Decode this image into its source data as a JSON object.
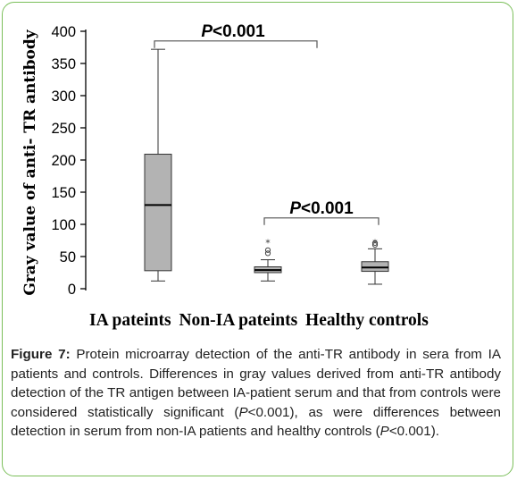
{
  "chart_data": {
    "type": "box",
    "ylabel": "Gray value of anti- TR antibody",
    "ylim": [
      0,
      400
    ],
    "yticks": [
      0,
      50,
      100,
      150,
      200,
      250,
      300,
      350,
      400
    ],
    "categories": [
      "IA pateints",
      "Non-IA pateints",
      "Healthy controls"
    ],
    "boxes": [
      {
        "category": "IA pateints",
        "whisker_low": 12,
        "q1": 28,
        "median": 130,
        "q3": 209,
        "whisker_high": 372,
        "outliers": []
      },
      {
        "category": "Non-IA pateints",
        "whisker_low": 12,
        "q1": 25,
        "median": 29,
        "q3": 34,
        "whisker_high": 45,
        "outliers": [
          55,
          60,
          74
        ]
      },
      {
        "category": "Healthy controls",
        "whisker_low": 7,
        "q1": 27,
        "median": 33,
        "q3": 42,
        "whisker_high": 62,
        "outliers": [
          68,
          71,
          74
        ]
      }
    ],
    "annotations": [
      {
        "text": "P<0.001",
        "from": "IA pateints",
        "to": "Non-IA pateints",
        "level": 385
      },
      {
        "text": "P<0.001",
        "from": "Non-IA pateints",
        "to": "Healthy controls",
        "level": 110
      }
    ],
    "grid": false
  },
  "caption": {
    "label": "Figure 7:",
    "text_1": " Protein microarray detection of the anti-TR antibody in sera from IA patients and controls. Differences in gray values derived from anti-TR antibody detection of the TR antigen between IA-patient serum and that from controls were considered statistically significant (",
    "p1": "P",
    "text_2": "<0.001), as were differences between detection in serum from non-IA patients and healthy controls (",
    "p2": "P",
    "text_3": "<0.001)."
  },
  "colors": {
    "frame": "#7bbf5a",
    "box_fill": "#b3b3b3"
  }
}
